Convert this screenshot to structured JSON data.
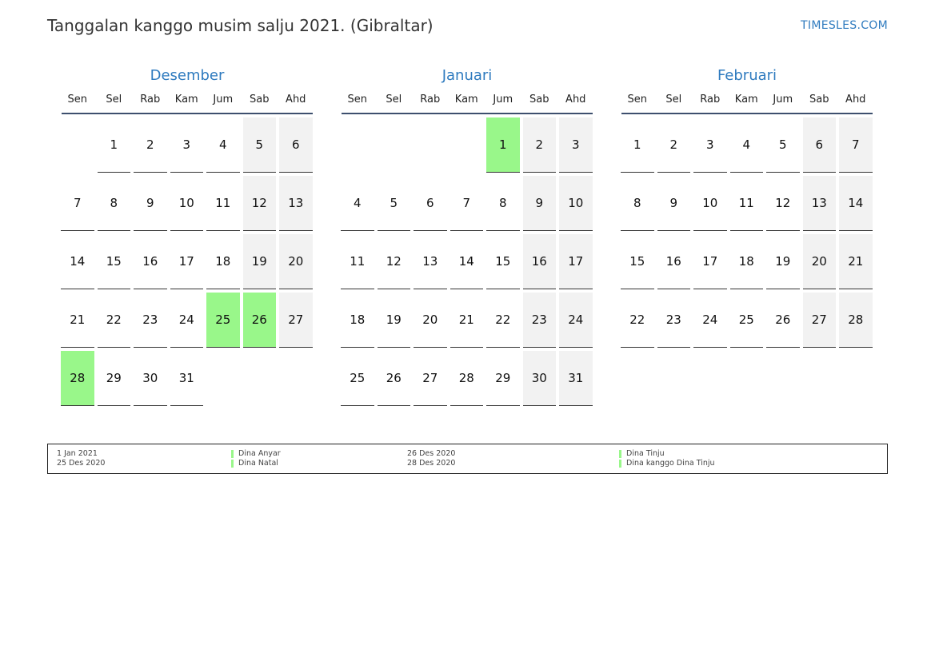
{
  "header": {
    "title": "Tanggalan kanggo musim salju 2021. (Gibraltar)",
    "brand": "TIMESLES.COM"
  },
  "weekdays": [
    "Sen",
    "Sel",
    "Rab",
    "Kam",
    "Jum",
    "Sab",
    "Ahd"
  ],
  "colors": {
    "accent": "#2f7bbf",
    "holiday": "#99f78a",
    "weekend": "#f2f2f2",
    "rule": "#3d4f6e"
  },
  "months": [
    {
      "name": "Desember",
      "start_offset": 1,
      "days_in_month": 31,
      "holidays": [
        25,
        26,
        28
      ]
    },
    {
      "name": "Januari",
      "start_offset": 4,
      "days_in_month": 31,
      "holidays": [
        1
      ]
    },
    {
      "name": "Februari",
      "start_offset": 0,
      "days_in_month": 28,
      "holidays": []
    }
  ],
  "legend": [
    {
      "date": "1 Jan 2021",
      "name": "Dina Anyar"
    },
    {
      "date": "25 Des 2020",
      "name": "Dina Natal"
    },
    {
      "date": "26 Des 2020",
      "name": "Dina Tinju"
    },
    {
      "date": "28 Des 2020",
      "name": "Dina kanggo Dina Tinju"
    }
  ]
}
